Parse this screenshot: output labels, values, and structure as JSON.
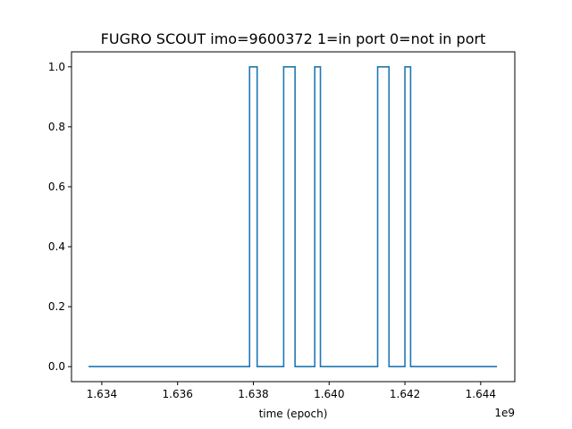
{
  "chart_data": {
    "type": "line",
    "title": "FUGRO SCOUT imo=9600372 1=in port 0=not in port",
    "xlabel": "time (epoch)",
    "ylabel": "",
    "x_offset_label": "1e9",
    "x_scale": 1000000000,
    "xlim": [
      1.6332,
      1.6449
    ],
    "ylim": [
      -0.05,
      1.05
    ],
    "x_ticks": [
      1.634,
      1.636,
      1.638,
      1.64,
      1.642,
      1.644
    ],
    "x_tick_labels": [
      "1.634",
      "1.636",
      "1.638",
      "1.640",
      "1.642",
      "1.644"
    ],
    "y_ticks": [
      0.0,
      0.2,
      0.4,
      0.6,
      0.8,
      1.0
    ],
    "y_tick_labels": [
      "0.0",
      "0.2",
      "0.4",
      "0.6",
      "0.8",
      "1.0"
    ],
    "grid": false,
    "series": [
      {
        "color": "#1f77b4",
        "step": true,
        "x": [
          1.63365,
          1.6379,
          1.6381,
          1.6388,
          1.6391,
          1.63962,
          1.63977,
          1.64128,
          1.64158,
          1.642,
          1.64215,
          1.64443
        ],
        "values": [
          0,
          1,
          0,
          1,
          0,
          1,
          0,
          1,
          0,
          1,
          0,
          0
        ]
      }
    ]
  }
}
